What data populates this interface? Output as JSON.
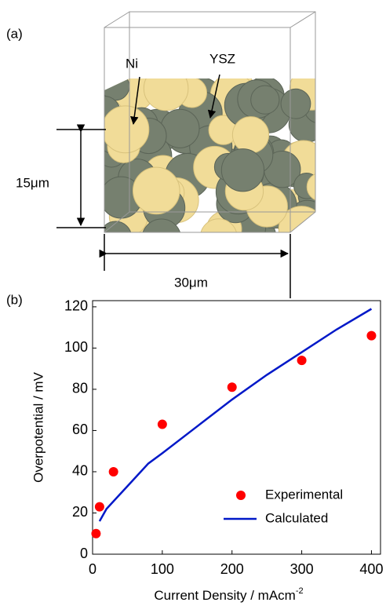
{
  "panel_a": {
    "label": "(a)",
    "ni": "Ni",
    "ysz": "YSZ",
    "height": "15μm",
    "width": "30μm"
  },
  "panel_b": {
    "label": "(b)"
  },
  "chart_data": {
    "type": "scatter",
    "xlabel": {
      "text": "Current Density / mAcm",
      "sup": "-2"
    },
    "ylabel": "Overpotential / mV",
    "xlim": [
      0,
      413
    ],
    "ylim": [
      0,
      123
    ],
    "xticks": [
      0,
      100,
      200,
      300,
      400
    ],
    "yticks": [
      0,
      20,
      40,
      60,
      80,
      100,
      120
    ],
    "legend": "lower right",
    "series": [
      {
        "name": "Experimental",
        "style": "marker",
        "color": "#ff0000",
        "x": [
          5,
          10,
          30,
          100,
          200,
          300,
          400
        ],
        "values": [
          10,
          23,
          40,
          63,
          81,
          94,
          106
        ]
      },
      {
        "name": "Calculated",
        "style": "line",
        "color": "#0018c8",
        "x": [
          10,
          20,
          50,
          80,
          100,
          150,
          200,
          250,
          300,
          350,
          400
        ],
        "values": [
          16,
          22,
          33,
          44,
          49,
          62,
          75,
          87,
          98,
          109,
          119
        ]
      }
    ]
  }
}
